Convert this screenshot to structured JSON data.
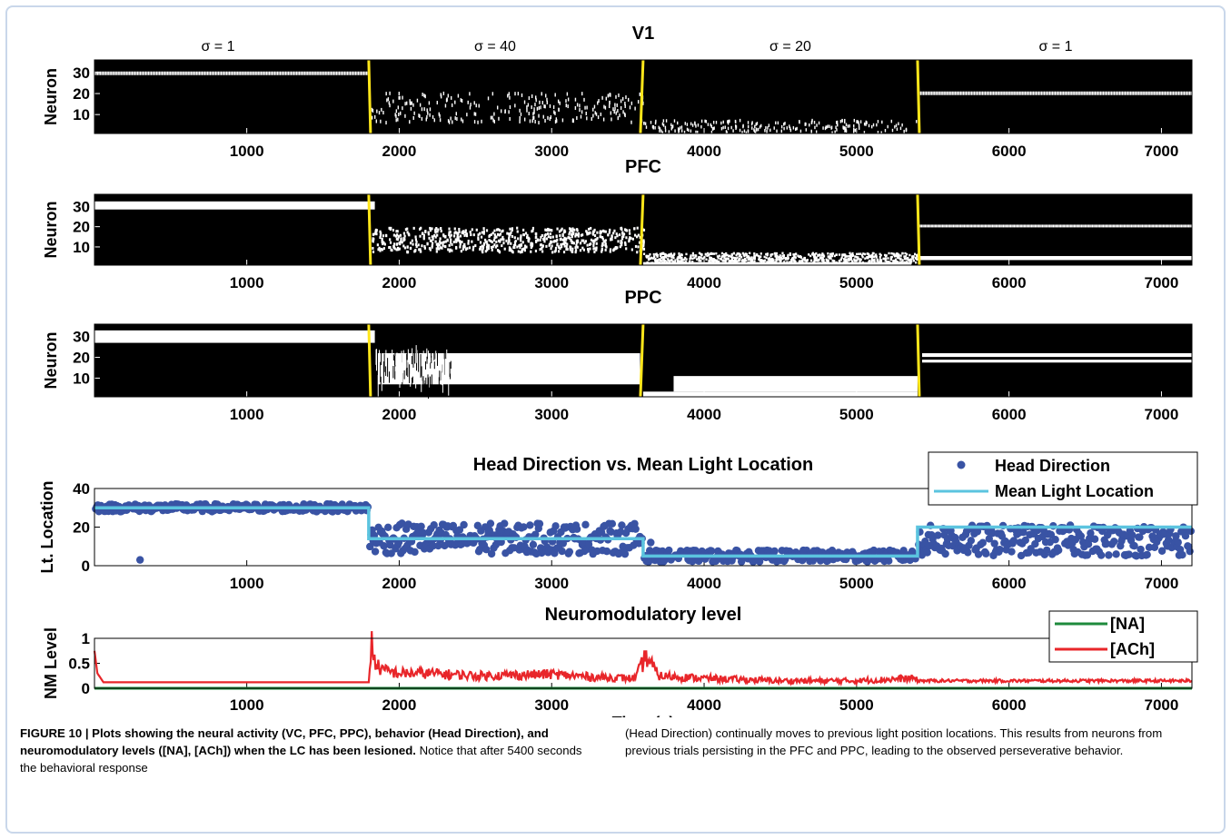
{
  "chart_data": [
    {
      "type": "heatmap",
      "title": "V1",
      "ylabel": "Neuron",
      "xlim": [
        1,
        7200
      ],
      "ylim": [
        1,
        36
      ],
      "xticks": [
        "1000",
        "2000",
        "3000",
        "4000",
        "5000",
        "6000",
        "7000"
      ],
      "yticks": [
        "10",
        "20",
        "30"
      ],
      "boundaries": [
        1800,
        3600,
        5400
      ],
      "segment_labels": [
        "σ = 1",
        "σ = 40",
        "σ = 20",
        "σ = 1"
      ],
      "colors": {
        "background": "#000000",
        "activity": "#ffffff",
        "boundary": "#ffe61a"
      }
    },
    {
      "type": "heatmap",
      "title": "PFC",
      "ylabel": "Neuron",
      "xlim": [
        1,
        7200
      ],
      "ylim": [
        1,
        36
      ],
      "xticks": [
        "1000",
        "2000",
        "3000",
        "4000",
        "5000",
        "6000",
        "7000"
      ],
      "yticks": [
        "10",
        "20",
        "30"
      ],
      "boundaries": [
        1800,
        3600,
        5400
      ]
    },
    {
      "type": "heatmap",
      "title": "PPC",
      "ylabel": "Neuron",
      "xlim": [
        1,
        7200
      ],
      "ylim": [
        1,
        36
      ],
      "xticks": [
        "1000",
        "2000",
        "3000",
        "4000",
        "5000",
        "6000",
        "7000"
      ],
      "yticks": [
        "10",
        "20",
        "30"
      ],
      "boundaries": [
        1800,
        3600,
        5400
      ]
    },
    {
      "type": "scatter",
      "title": "Head Direction vs. Mean Light Location",
      "ylabel": "Lt. Location",
      "xlim": [
        1,
        7200
      ],
      "ylim": [
        0,
        40
      ],
      "xticks": [
        "1000",
        "2000",
        "3000",
        "4000",
        "5000",
        "6000",
        "7000"
      ],
      "yticks": [
        "0",
        "20",
        "40"
      ],
      "legend_position": "top-right",
      "series": [
        {
          "name": "Head Direction",
          "color": "#3953a4",
          "segments": [
            {
              "from": 1,
              "to": 1800,
              "center": 30,
              "spread": 2
            },
            {
              "from": 1800,
              "to": 3600,
              "center": 14,
              "spread": 8
            },
            {
              "from": 3600,
              "to": 5400,
              "center": 5,
              "spread": 3
            },
            {
              "from": 5400,
              "to": 7200,
              "center": 13,
              "spread": 8
            }
          ],
          "outliers": [
            {
              "x": 300,
              "y": 3
            },
            {
              "x": 3650,
              "y": 12
            }
          ]
        },
        {
          "name": "Mean Light Location",
          "color": "#5bc4df",
          "x": [
            1,
            1800,
            1800,
            3600,
            3600,
            5400,
            5400,
            7200
          ],
          "y": [
            30,
            30,
            14,
            14,
            5,
            5,
            20,
            20
          ]
        }
      ]
    },
    {
      "type": "line",
      "title": "Neuromodulatory level",
      "ylabel": "NM Level",
      "xlabel": "Time (s)",
      "xlim": [
        1,
        7200
      ],
      "ylim": [
        0,
        1
      ],
      "xticks": [
        "1000",
        "2000",
        "3000",
        "4000",
        "5000",
        "6000",
        "7000"
      ],
      "yticks": [
        "0",
        "0.5",
        "1"
      ],
      "legend_position": "top-right",
      "series": [
        {
          "name": "[NA]",
          "color": "#1e8a3c",
          "x": [
            1,
            7200
          ],
          "y": [
            0.0,
            0.0
          ]
        },
        {
          "name": "[ACh]",
          "color": "#e8262a",
          "x": [
            1,
            20,
            60,
            1800,
            1820,
            1850,
            1900,
            2000,
            2200,
            2500,
            3000,
            3300,
            3550,
            3620,
            3700,
            4000,
            4500,
            5000,
            5380,
            5400,
            6000,
            7200
          ],
          "y": [
            0.75,
            0.3,
            0.12,
            0.12,
            0.9,
            0.45,
            0.35,
            0.3,
            0.3,
            0.25,
            0.28,
            0.22,
            0.2,
            0.65,
            0.25,
            0.2,
            0.15,
            0.15,
            0.2,
            0.15,
            0.15,
            0.15
          ]
        }
      ]
    }
  ],
  "caption": {
    "label": "FIGURE 10 | Plots showing the neural activity (VC, PFC, PPC), behavior (Head Direction), and neuromodulatory levels ([NA], [ACh]) when the LC has been lesioned.",
    "left_text": " Notice that after 5400 seconds the behavioral response",
    "right_text": "(Head Direction) continually moves to previous light position locations. This results from neurons from previous trials persisting in the PFC and PPC, leading to the observed perseverative behavior."
  }
}
